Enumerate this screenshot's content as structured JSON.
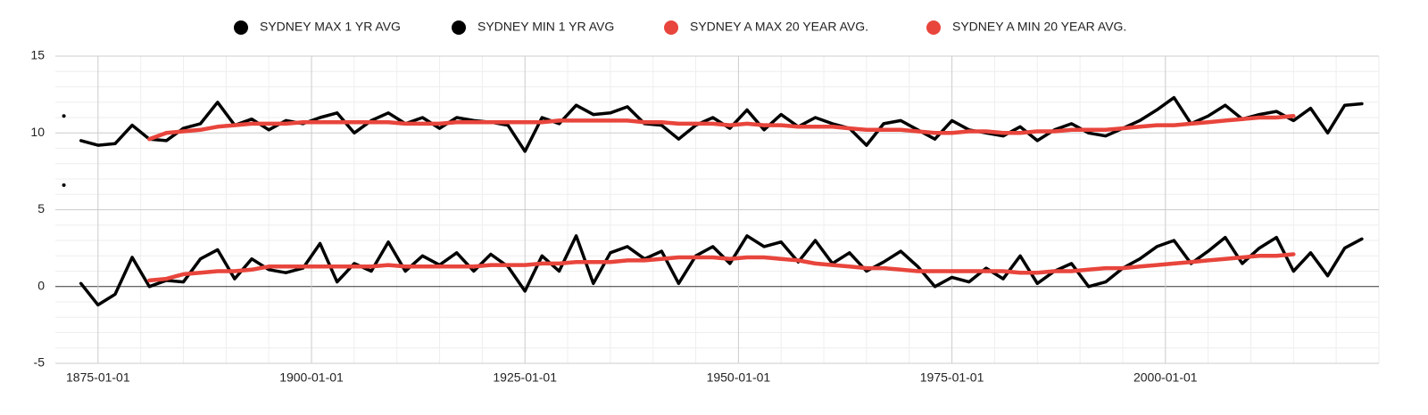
{
  "chart_data": {
    "type": "line",
    "x": [
      "1871-01-01",
      "1872-01-01",
      "1873-01-01",
      "1875-01-01",
      "1877-01-01",
      "1879-01-01",
      "1881-01-01",
      "1883-01-01",
      "1885-01-01",
      "1887-01-01",
      "1889-01-01",
      "1891-01-01",
      "1893-01-01",
      "1895-01-01",
      "1897-01-01",
      "1899-01-01",
      "1901-01-01",
      "1903-01-01",
      "1905-01-01",
      "1907-01-01",
      "1909-01-01",
      "1911-01-01",
      "1913-01-01",
      "1915-01-01",
      "1917-01-01",
      "1919-01-01",
      "1921-01-01",
      "1923-01-01",
      "1925-01-01",
      "1927-01-01",
      "1929-01-01",
      "1931-01-01",
      "1933-01-01",
      "1935-01-01",
      "1937-01-01",
      "1939-01-01",
      "1941-01-01",
      "1943-01-01",
      "1945-01-01",
      "1947-01-01",
      "1949-01-01",
      "1951-01-01",
      "1953-01-01",
      "1955-01-01",
      "1957-01-01",
      "1959-01-01",
      "1961-01-01",
      "1963-01-01",
      "1965-01-01",
      "1967-01-01",
      "1969-01-01",
      "1971-01-01",
      "1973-01-01",
      "1975-01-01",
      "1977-01-01",
      "1979-01-01",
      "1981-01-01",
      "1983-01-01",
      "1985-01-01",
      "1987-01-01",
      "1989-01-01",
      "1991-01-01",
      "1993-01-01",
      "1995-01-01",
      "1997-01-01",
      "1999-01-01",
      "2001-01-01",
      "2003-01-01",
      "2005-01-01",
      "2007-01-01",
      "2009-01-01",
      "2011-01-01",
      "2013-01-01",
      "2015-01-01",
      "2017-01-01",
      "2019-01-01",
      "2021-01-01",
      "2023-01-01"
    ],
    "series": [
      {
        "name": "SYDNEY MAX 1 YR AVG",
        "color": "#000000",
        "values": [
          11.1,
          null,
          9.5,
          9.2,
          9.3,
          10.5,
          9.6,
          9.5,
          10.3,
          10.6,
          12.0,
          10.5,
          10.9,
          10.2,
          10.8,
          10.6,
          11.0,
          11.3,
          10.0,
          10.8,
          11.3,
          10.6,
          11.0,
          10.3,
          11.0,
          10.8,
          10.7,
          10.5,
          8.8,
          11.0,
          10.6,
          11.8,
          11.2,
          11.3,
          11.7,
          10.6,
          10.5,
          9.6,
          10.5,
          11.0,
          10.3,
          11.5,
          10.2,
          11.2,
          10.4,
          11.0,
          10.6,
          10.3,
          9.2,
          10.6,
          10.8,
          10.2,
          9.6,
          10.8,
          10.2,
          10.0,
          9.8,
          10.4,
          9.5,
          10.2,
          10.6,
          10.0,
          9.8,
          10.3,
          10.8,
          11.5,
          12.3,
          10.6,
          11.1,
          11.8,
          10.9,
          11.2,
          11.4,
          10.8,
          11.6,
          10.0,
          11.8,
          11.9
        ]
      },
      {
        "name": "SYDNEY MIN 1 YR AVG",
        "color": "#000000",
        "values": [
          6.6,
          null,
          0.2,
          -1.2,
          -0.5,
          1.9,
          0.0,
          0.4,
          0.3,
          1.8,
          2.4,
          0.5,
          1.8,
          1.1,
          0.9,
          1.2,
          2.8,
          0.3,
          1.5,
          1.0,
          2.9,
          1.0,
          2.0,
          1.4,
          2.2,
          1.0,
          2.1,
          1.3,
          -0.3,
          2.0,
          1.0,
          3.3,
          0.2,
          2.2,
          2.6,
          1.8,
          2.3,
          0.2,
          2.0,
          2.6,
          1.5,
          3.3,
          2.6,
          2.9,
          1.6,
          3.0,
          1.5,
          2.2,
          1.0,
          1.6,
          2.3,
          1.3,
          0.0,
          0.6,
          0.3,
          1.2,
          0.5,
          2.0,
          0.2,
          1.0,
          1.5,
          0.0,
          0.3,
          1.2,
          1.8,
          2.6,
          3.0,
          1.5,
          2.3,
          3.2,
          1.5,
          2.5,
          3.2,
          1.0,
          2.2,
          0.7,
          2.5,
          3.1
        ]
      },
      {
        "name": "SYDNEY A MAX 20 YEAR AVG.",
        "color": "#e8453c",
        "values": [
          null,
          null,
          null,
          null,
          null,
          null,
          9.6,
          10.0,
          10.1,
          10.2,
          10.4,
          10.5,
          10.6,
          10.6,
          10.6,
          10.7,
          10.7,
          10.7,
          10.7,
          10.7,
          10.7,
          10.6,
          10.6,
          10.6,
          10.7,
          10.7,
          10.7,
          10.7,
          10.7,
          10.7,
          10.8,
          10.8,
          10.8,
          10.8,
          10.8,
          10.7,
          10.7,
          10.6,
          10.6,
          10.6,
          10.5,
          10.6,
          10.5,
          10.5,
          10.4,
          10.4,
          10.4,
          10.3,
          10.2,
          10.2,
          10.2,
          10.1,
          10.0,
          10.0,
          10.1,
          10.1,
          10.0,
          10.0,
          10.1,
          10.1,
          10.2,
          10.2,
          10.2,
          10.3,
          10.4,
          10.5,
          10.5,
          10.6,
          10.7,
          10.8,
          10.9,
          11.0,
          11.0,
          11.1,
          null,
          null,
          null,
          null
        ]
      },
      {
        "name": "SYDNEY A MIN 20 YEAR AVG.",
        "color": "#e8453c",
        "values": [
          null,
          null,
          null,
          null,
          null,
          null,
          0.4,
          0.5,
          0.8,
          0.9,
          1.0,
          1.0,
          1.1,
          1.3,
          1.3,
          1.3,
          1.3,
          1.3,
          1.3,
          1.3,
          1.4,
          1.3,
          1.3,
          1.3,
          1.3,
          1.3,
          1.4,
          1.4,
          1.4,
          1.5,
          1.5,
          1.6,
          1.6,
          1.6,
          1.7,
          1.7,
          1.8,
          1.9,
          1.9,
          1.9,
          1.8,
          1.9,
          1.9,
          1.8,
          1.7,
          1.5,
          1.4,
          1.3,
          1.2,
          1.2,
          1.1,
          1.0,
          1.0,
          1.0,
          1.0,
          1.0,
          1.0,
          0.9,
          0.9,
          1.0,
          1.0,
          1.1,
          1.2,
          1.2,
          1.3,
          1.4,
          1.5,
          1.6,
          1.7,
          1.8,
          1.9,
          2.0,
          2.0,
          2.1,
          null,
          null,
          null,
          null
        ]
      }
    ],
    "xlim": [
      "1870-01-01",
      "2025-01-01"
    ],
    "xticks": [
      "1875-01-01",
      "1900-01-01",
      "1925-01-01",
      "1950-01-01",
      "1975-01-01",
      "2000-01-01"
    ],
    "ylim": [
      -5,
      15
    ],
    "yticks": [
      -5,
      0,
      5,
      10,
      15
    ],
    "grid": true,
    "minor_grid": true,
    "legend": "top"
  }
}
